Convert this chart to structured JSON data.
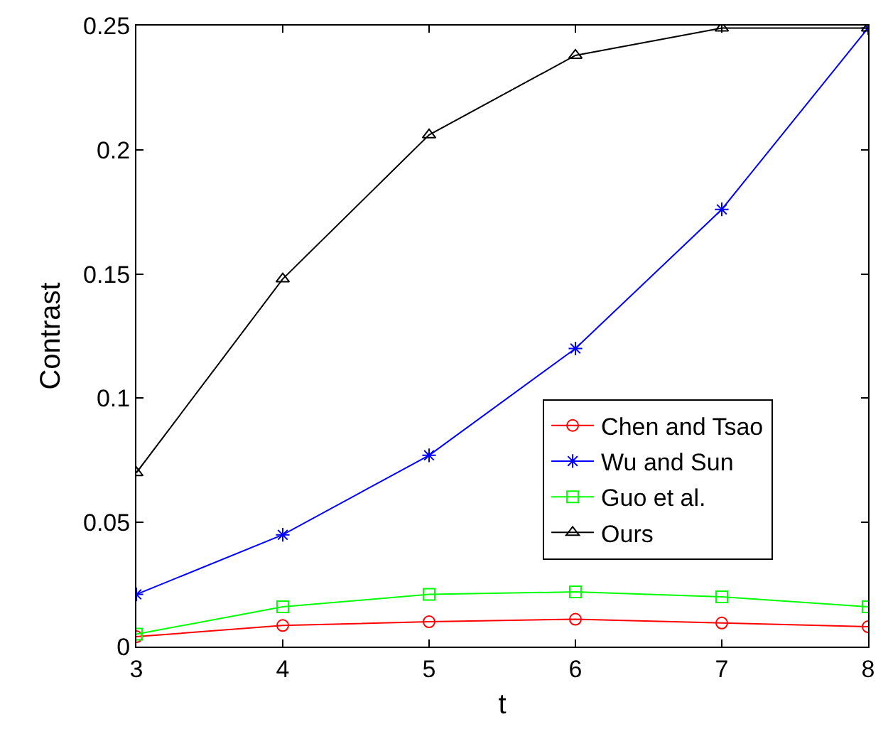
{
  "chart_data": {
    "type": "line",
    "xlabel": "t",
    "ylabel": "Contrast",
    "x": [
      3,
      4,
      5,
      6,
      7,
      8
    ],
    "series": [
      {
        "name": "Chen and Tsao",
        "color": "#ff0000",
        "marker": "circle",
        "values": [
          0.004,
          0.0085,
          0.01,
          0.011,
          0.0095,
          0.008
        ]
      },
      {
        "name": "Wu and Sun",
        "color": "#0000ff",
        "marker": "cross",
        "values": [
          0.021,
          0.045,
          0.077,
          0.12,
          0.176,
          0.249
        ]
      },
      {
        "name": "Guo et al.",
        "color": "#00ff00",
        "marker": "square",
        "values": [
          0.005,
          0.016,
          0.021,
          0.022,
          0.02,
          0.016
        ]
      },
      {
        "name": "Ours",
        "color": "#000000",
        "marker": "triangle",
        "values": [
          0.07,
          0.148,
          0.206,
          0.238,
          0.249,
          0.249
        ]
      }
    ],
    "xlim": [
      3,
      8
    ],
    "xticks": [
      3,
      4,
      5,
      6,
      7,
      8
    ],
    "ylim": [
      0,
      0.25
    ],
    "yticks": [
      0,
      0.05,
      0.1,
      0.15,
      0.2,
      0.25
    ],
    "grid": false,
    "legend": "bottom right",
    "line_style": "solid"
  }
}
